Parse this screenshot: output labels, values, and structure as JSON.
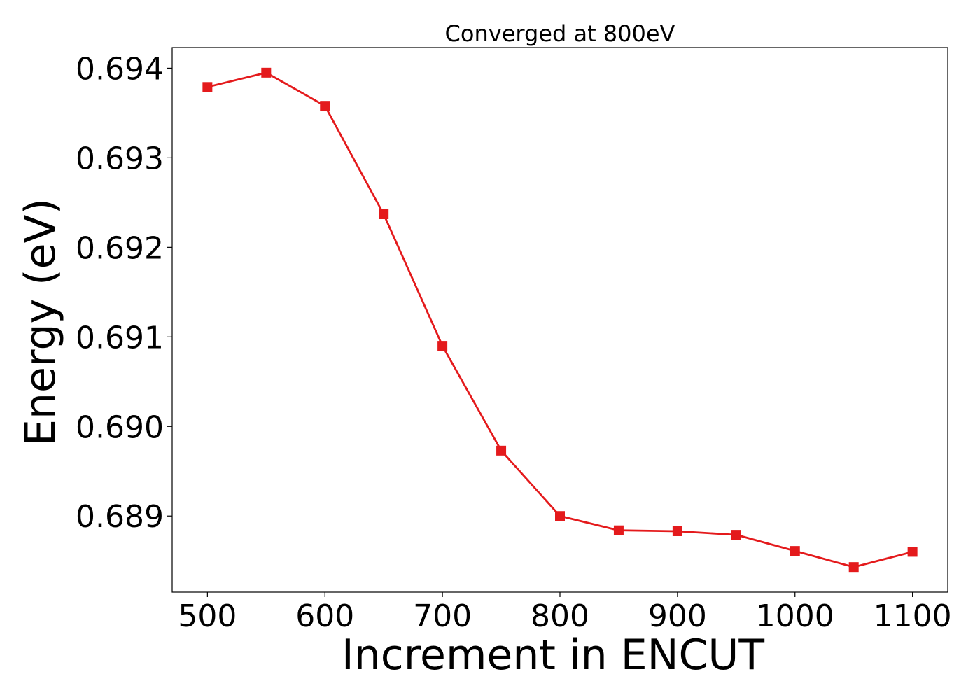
{
  "chart_data": {
    "type": "line",
    "title": "Converged at 800eV",
    "xlabel": "Increment in ENCUT",
    "ylabel": "Energy (eV)",
    "xlim": [
      470,
      1130
    ],
    "ylim": [
      0.68815,
      0.69423
    ],
    "xticks": [
      500,
      600,
      700,
      800,
      900,
      1000,
      1100
    ],
    "yticks": [
      0.689,
      0.69,
      0.691,
      0.692,
      0.693,
      0.694
    ],
    "ytick_labels": [
      "0.689",
      "0.690",
      "0.691",
      "0.692",
      "0.693",
      "0.694"
    ],
    "grid": false,
    "series": [
      {
        "color": "#e41a1c",
        "marker": "square",
        "x": [
          500,
          550,
          600,
          650,
          700,
          750,
          800,
          850,
          900,
          950,
          1000,
          1050,
          1100
        ],
        "y": [
          0.69379,
          0.69395,
          0.69358,
          0.69237,
          0.6909,
          0.68973,
          0.689,
          0.68884,
          0.68883,
          0.68879,
          0.68861,
          0.68843,
          0.6886
        ]
      }
    ]
  }
}
